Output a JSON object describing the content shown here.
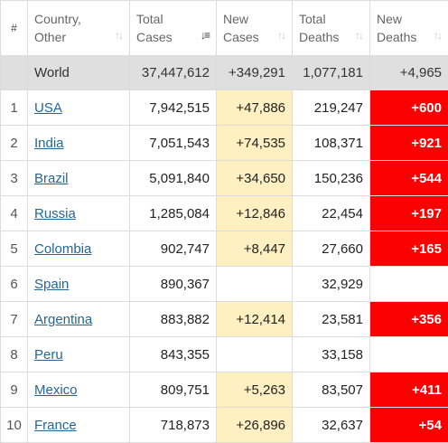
{
  "headers": {
    "idx": "#",
    "country": [
      "Country,",
      "Other"
    ],
    "total_cases": [
      "Total",
      "Cases"
    ],
    "new_cases": [
      "New",
      "Cases"
    ],
    "total_deaths": [
      "Total",
      "Deaths"
    ],
    "new_deaths": [
      "New",
      "Deaths"
    ]
  },
  "sort_icons": {
    "active": "sort-desc-icon",
    "inactive": "sort-icon"
  },
  "colors": {
    "new_cases_bg": "#fff0c2",
    "new_deaths_bg": "#fa0000",
    "world_row_bg": "#dfdfdf",
    "link": "#246694"
  },
  "world": {
    "country": "World",
    "total_cases": "37,447,612",
    "new_cases": "+349,291",
    "total_deaths": "1,077,181",
    "new_deaths": "+4,965"
  },
  "rows": [
    {
      "idx": "1",
      "country": "USA",
      "total_cases": "7,942,515",
      "new_cases": "+47,886",
      "total_deaths": "219,247",
      "new_deaths": "+600"
    },
    {
      "idx": "2",
      "country": "India",
      "total_cases": "7,051,543",
      "new_cases": "+74,535",
      "total_deaths": "108,371",
      "new_deaths": "+921"
    },
    {
      "idx": "3",
      "country": "Brazil",
      "total_cases": "5,091,840",
      "new_cases": "+34,650",
      "total_deaths": "150,236",
      "new_deaths": "+544"
    },
    {
      "idx": "4",
      "country": "Russia",
      "total_cases": "1,285,084",
      "new_cases": "+12,846",
      "total_deaths": "22,454",
      "new_deaths": "+197"
    },
    {
      "idx": "5",
      "country": "Colombia",
      "total_cases": "902,747",
      "new_cases": "+8,447",
      "total_deaths": "27,660",
      "new_deaths": "+165"
    },
    {
      "idx": "6",
      "country": "Spain",
      "total_cases": "890,367",
      "new_cases": "",
      "total_deaths": "32,929",
      "new_deaths": ""
    },
    {
      "idx": "7",
      "country": "Argentina",
      "total_cases": "883,882",
      "new_cases": "+12,414",
      "total_deaths": "23,581",
      "new_deaths": "+356"
    },
    {
      "idx": "8",
      "country": "Peru",
      "total_cases": "843,355",
      "new_cases": "",
      "total_deaths": "33,158",
      "new_deaths": ""
    },
    {
      "idx": "9",
      "country": "Mexico",
      "total_cases": "809,751",
      "new_cases": "+5,263",
      "total_deaths": "83,507",
      "new_deaths": "+411"
    },
    {
      "idx": "10",
      "country": "France",
      "total_cases": "718,873",
      "new_cases": "+26,896",
      "total_deaths": "32,637",
      "new_deaths": "+54"
    }
  ]
}
